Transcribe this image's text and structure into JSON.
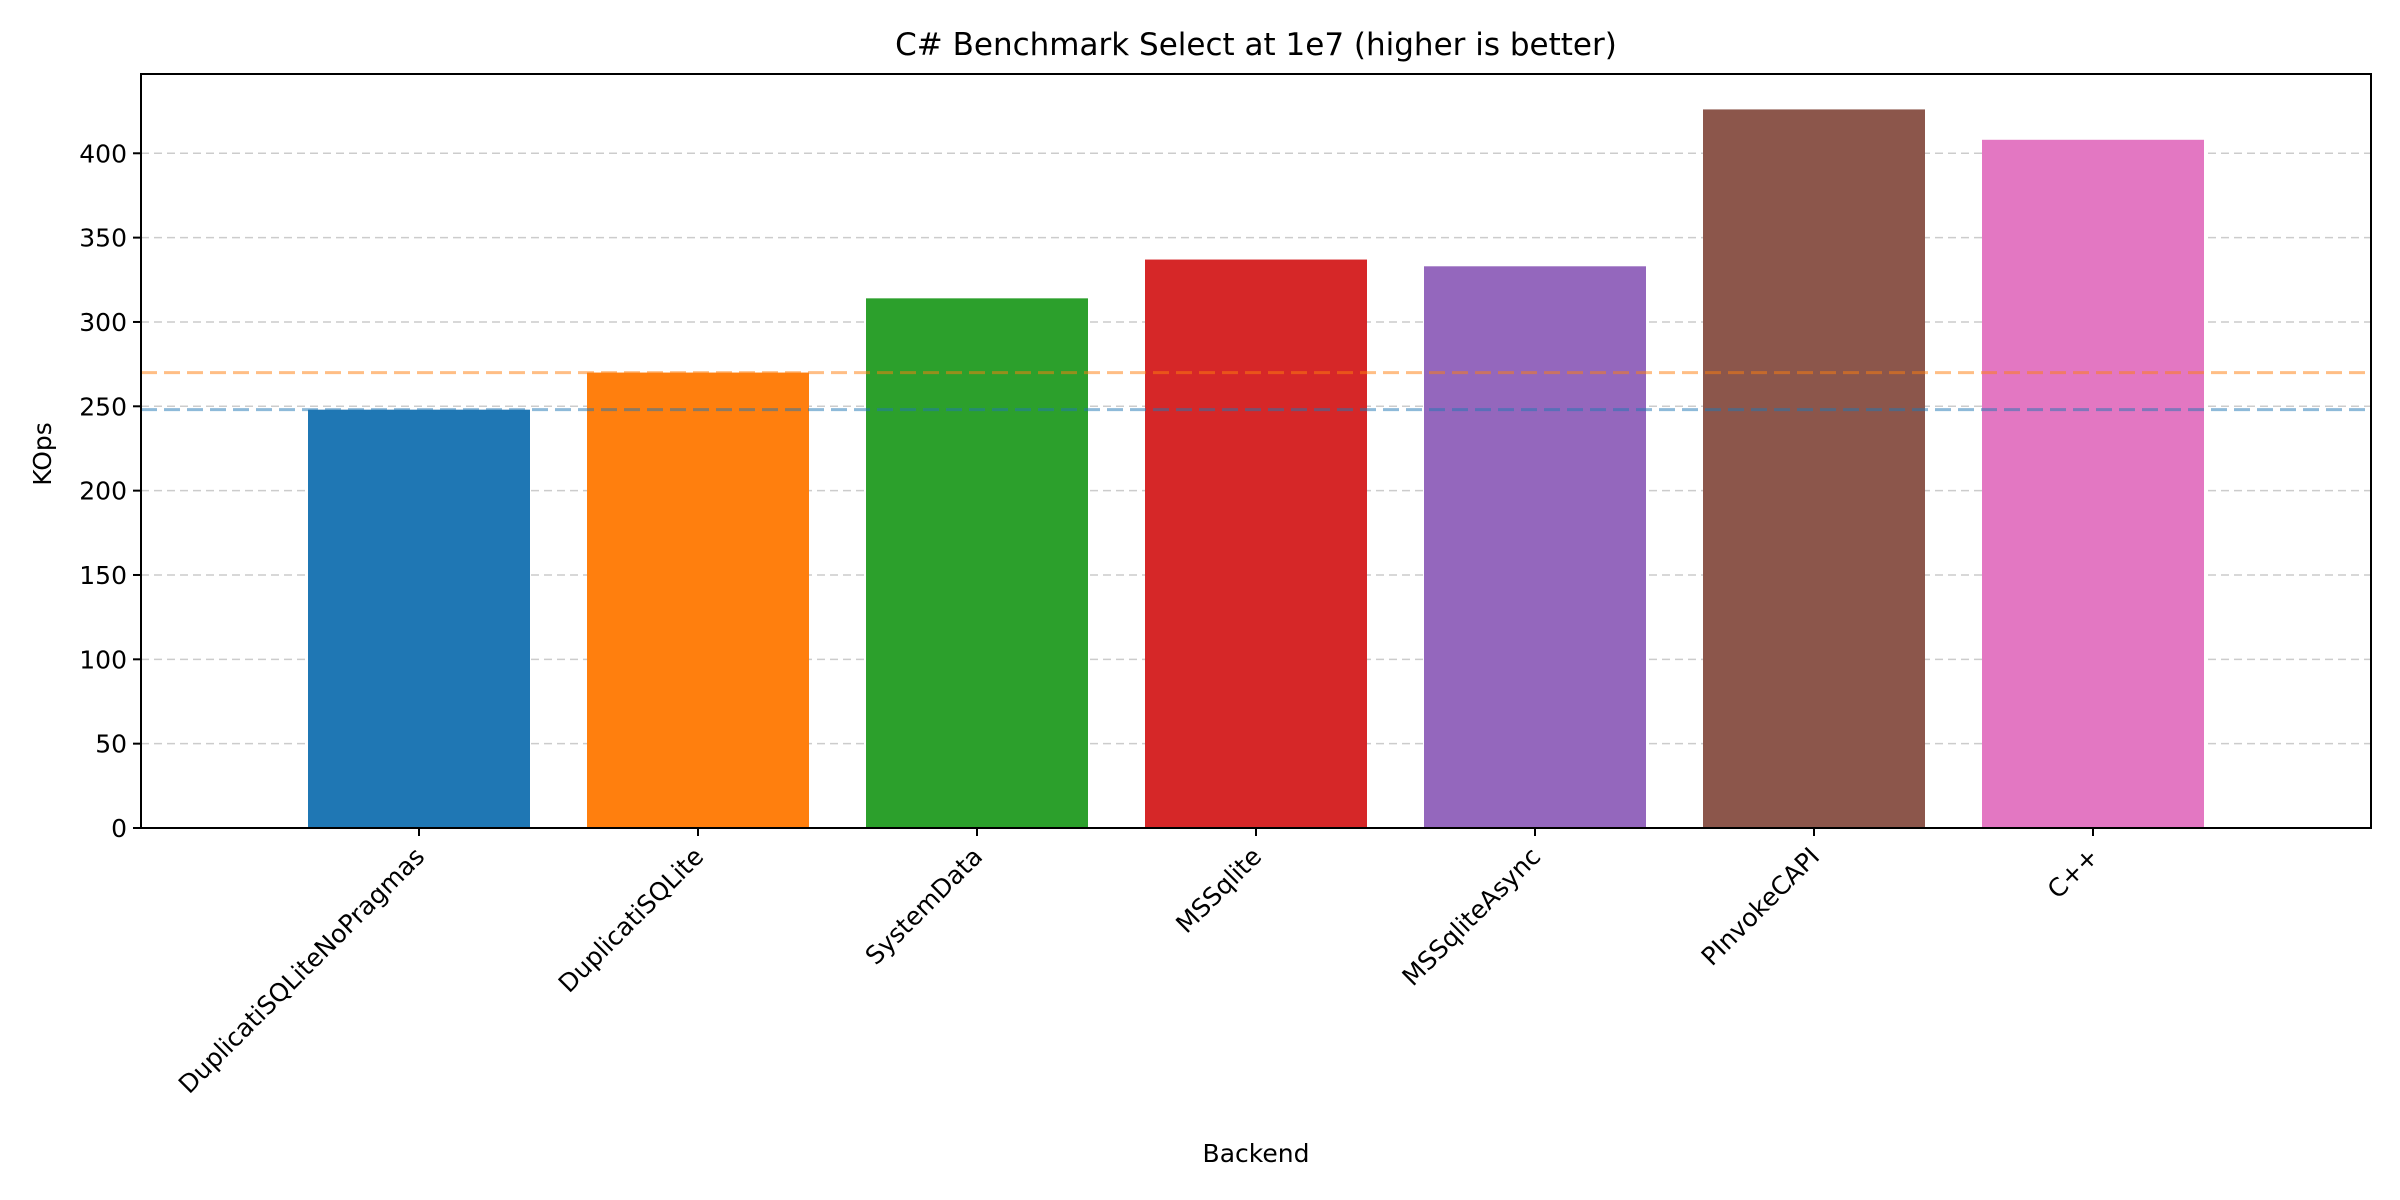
{
  "chart_data": {
    "type": "bar",
    "title": "C# Benchmark Select at 1e7 (higher is better)",
    "xlabel": "Backend",
    "ylabel": "KOps",
    "ylim": [
      0,
      447
    ],
    "yticks": [
      0,
      50,
      100,
      150,
      200,
      250,
      300,
      350,
      400
    ],
    "grid": "y",
    "categories": [
      "DuplicatiSQLiteNoPragmas",
      "DuplicatiSQLite",
      "SystemData",
      "MSSqlite",
      "MSSqliteAsync",
      "PInvokeCAPI",
      "C++"
    ],
    "values": [
      248,
      270,
      314,
      337,
      333,
      426,
      408
    ],
    "colors": [
      "#1f77b4",
      "#ff7f0e",
      "#2ca02c",
      "#d62728",
      "#9467bd",
      "#8c564b",
      "#e377c2"
    ],
    "reference_lines": [
      {
        "value": 248,
        "color": "#1f77b4"
      },
      {
        "value": 270,
        "color": "#ff7f0e"
      }
    ]
  }
}
